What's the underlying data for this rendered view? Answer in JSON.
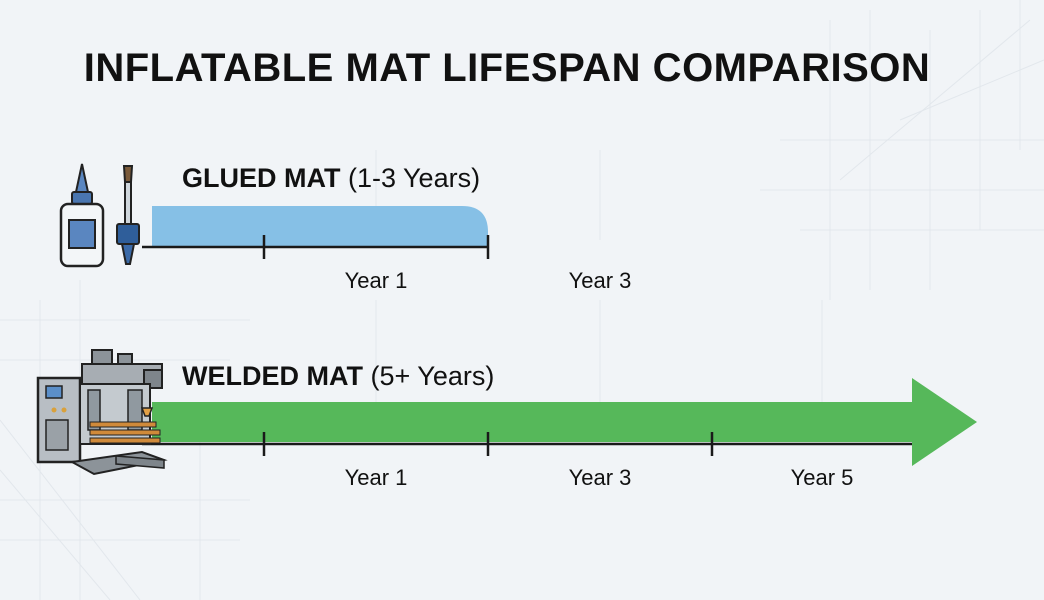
{
  "title": "INFLATABLE MAT LIFESPAN COMPARISON",
  "chart_data": {
    "type": "bar",
    "orientation": "horizontal",
    "x_unit": "years",
    "xlim": [
      0,
      6.5
    ],
    "series": [
      {
        "name": "GLUED MAT",
        "range_label": "(1-3 Years)",
        "min_years": 1,
        "max_years": 3,
        "end_style": "rounded",
        "color": "#86c0e6",
        "icon": "glue-bottle-and-brush-icon",
        "ticks": [
          {
            "value": 1,
            "label": "Year 1"
          },
          {
            "value": 3,
            "label": "Year 3"
          }
        ]
      },
      {
        "name": "WELDED MAT",
        "range_label": "(5+ Years)",
        "min_years": 5,
        "max_years": null,
        "end_style": "arrow",
        "color": "#56b85a",
        "icon": "welding-machine-icon",
        "ticks": [
          {
            "value": 1,
            "label": "Year 1"
          },
          {
            "value": 3,
            "label": "Year 3"
          },
          {
            "value": 5,
            "label": "Year 5"
          }
        ]
      }
    ]
  }
}
